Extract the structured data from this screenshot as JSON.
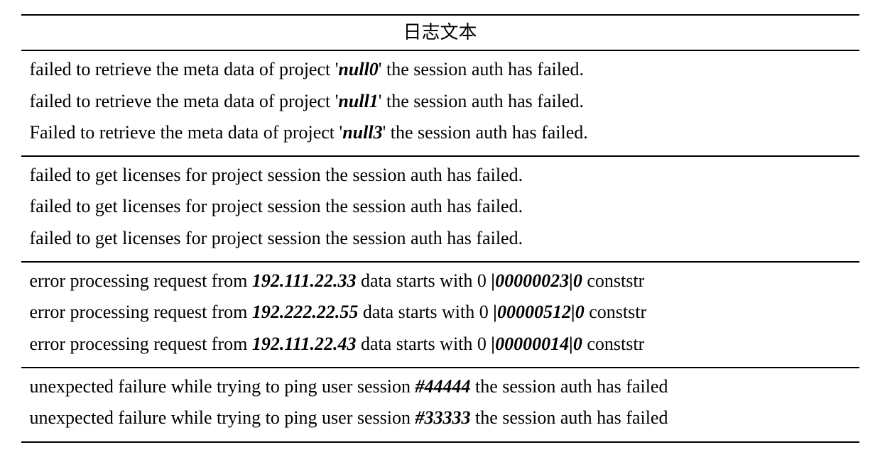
{
  "header": {
    "title": "日志文本"
  },
  "sections": [
    {
      "rows": [
        {
          "pre": "failed to retrieve the meta data of project '",
          "em": "null0",
          "post": "' the session auth has failed."
        },
        {
          "pre": "failed to retrieve the meta data of project '",
          "em": "null1",
          "post": "' the session auth has failed."
        },
        {
          "pre": "Failed to retrieve the meta data of project '",
          "em": "null3",
          "post": "' the session auth has failed."
        }
      ]
    },
    {
      "rows": [
        {
          "pre": "failed to get licenses for project session the session auth has failed.",
          "em": "",
          "post": ""
        },
        {
          "pre": "failed to get licenses for project session the session auth has failed.",
          "em": "",
          "post": ""
        },
        {
          "pre": "failed to get licenses for project session the session auth has failed.",
          "em": "",
          "post": ""
        }
      ]
    },
    {
      "rows": [
        {
          "pre": "error processing request from ",
          "em": "192.111.22.33",
          "mid": " data starts with 0 ",
          "em2": "|00000023|0",
          "post": " conststr"
        },
        {
          "pre": "error processing request from ",
          "em": "192.222.22.55",
          "mid": " data starts with 0 ",
          "em2": "|00000512|0",
          "post": " conststr"
        },
        {
          "pre": "error processing request from ",
          "em": "192.111.22.43",
          "mid": " data starts with 0 ",
          "em2": "|00000014|0",
          "post": " conststr"
        }
      ]
    },
    {
      "rows": [
        {
          "pre": "unexpected failure while trying to ping user session ",
          "em": "#44444",
          "post": " the session auth has failed"
        },
        {
          "pre": "unexpected failure while trying to ping user session ",
          "em": "#33333",
          "post": " the session auth has failed"
        }
      ]
    }
  ],
  "style": {
    "font_family": "Times New Roman",
    "base_fontsize_pt": 20,
    "border_color": "#000000",
    "background": "#ffffff",
    "text_color": "#000000"
  }
}
